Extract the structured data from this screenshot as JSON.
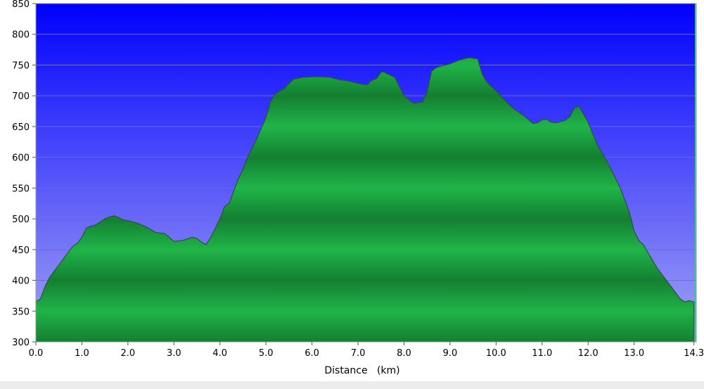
{
  "chart_data": {
    "type": "area",
    "title": "",
    "xlabel": "Distance   (km)",
    "ylabel": "",
    "xlim": [
      0.0,
      14.35
    ],
    "ylim": [
      300,
      850
    ],
    "x_ticks": [
      "0.0",
      "1.0",
      "2.0",
      "3.0",
      "4.0",
      "5.0",
      "6.0",
      "7.0",
      "8.0",
      "9.0",
      "10.0",
      "11.0",
      "12.0",
      "13.0",
      "14.3"
    ],
    "x_tick_values": [
      0,
      1,
      2,
      3,
      4,
      5,
      6,
      7,
      8,
      9,
      10,
      11,
      12,
      13,
      14.3
    ],
    "y_ticks": [
      "300",
      "350",
      "400",
      "450",
      "500",
      "550",
      "600",
      "650",
      "700",
      "750",
      "800",
      "850"
    ],
    "y_tick_values": [
      300,
      350,
      400,
      450,
      500,
      550,
      600,
      650,
      700,
      750,
      800,
      850
    ],
    "grid": true,
    "colors": {
      "background_top": "#0000ff",
      "background_bottom": "#a0a0f4",
      "fill_light": "#21b84a",
      "fill_dark": "#138a33",
      "outline": "#2d5234"
    },
    "series": [
      {
        "x": [
          0.0,
          0.1,
          0.2,
          0.3,
          0.4,
          0.5,
          0.6,
          0.7,
          0.8,
          0.9,
          1.0,
          1.1,
          1.2,
          1.3,
          1.4,
          1.5,
          1.6,
          1.7,
          1.8,
          1.9,
          2.0,
          2.2,
          2.4,
          2.6,
          2.8,
          2.9,
          3.0,
          3.2,
          3.4,
          3.5,
          3.6,
          3.7,
          3.8,
          4.0,
          4.1,
          4.2,
          4.3,
          4.4,
          4.5,
          4.6,
          4.8,
          5.0,
          5.1,
          5.2,
          5.4,
          5.5,
          5.6,
          5.8,
          6.0,
          6.2,
          6.4,
          6.6,
          6.8,
          7.0,
          7.2,
          7.3,
          7.4,
          7.5,
          7.55,
          7.6,
          7.8,
          7.9,
          8.0,
          8.2,
          8.4,
          8.5,
          8.6,
          8.7,
          8.8,
          9.0,
          9.2,
          9.4,
          9.6,
          9.7,
          9.8,
          10.0,
          10.2,
          10.4,
          10.6,
          10.8,
          10.9,
          11.0,
          11.1,
          11.2,
          11.3,
          11.5,
          11.6,
          11.7,
          11.8,
          11.9,
          12.0,
          12.2,
          12.4,
          12.6,
          12.7,
          12.8,
          12.9,
          13.0,
          13.1,
          13.2,
          13.3,
          13.5,
          13.7,
          13.9,
          14.0,
          14.1,
          14.2,
          14.3
        ],
        "y": [
          365,
          370,
          390,
          405,
          415,
          425,
          435,
          445,
          455,
          460,
          470,
          485,
          488,
          490,
          495,
          500,
          503,
          505,
          502,
          498,
          497,
          493,
          487,
          478,
          476,
          470,
          463,
          465,
          470,
          468,
          462,
          458,
          470,
          500,
          520,
          525,
          545,
          565,
          580,
          600,
          630,
          665,
          690,
          703,
          712,
          720,
          727,
          730,
          731,
          731,
          730,
          726,
          724,
          720,
          718,
          725,
          728,
          738,
          739,
          737,
          730,
          715,
          700,
          688,
          690,
          705,
          740,
          746,
          748,
          752,
          758,
          762,
          760,
          735,
          722,
          708,
          692,
          678,
          668,
          655,
          656,
          661,
          662,
          657,
          656,
          660,
          666,
          680,
          683,
          670,
          657,
          620,
          595,
          565,
          550,
          530,
          510,
          480,
          465,
          458,
          445,
          420,
          400,
          380,
          370,
          365,
          367,
          365
        ]
      }
    ]
  }
}
